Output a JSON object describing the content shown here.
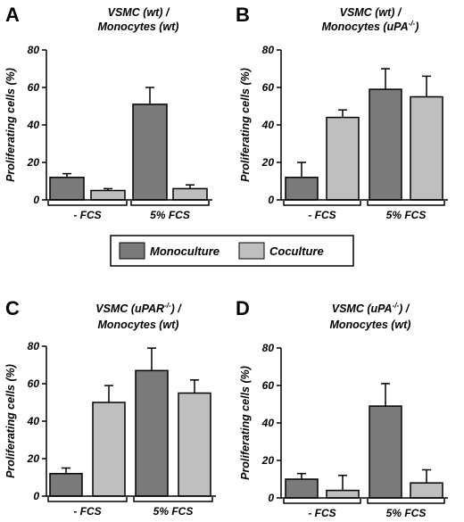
{
  "legend": {
    "entries": [
      {
        "label": "Monoculture",
        "color": "#7a7a7a"
      },
      {
        "label": "Coculture",
        "color": "#bfbfbf"
      }
    ]
  },
  "chart_data": [
    {
      "panel": "A",
      "type": "bar",
      "title_line1": "VSMC (wt) /",
      "title_line2_pre": "Monocytes (wt)",
      "title_line2_sup": "",
      "title_line2_post": "",
      "ylabel": "Proliferating cells (%)",
      "ylim": [
        0,
        80
      ],
      "yticks": [
        "0",
        "20",
        "40",
        "60",
        "80"
      ],
      "groups": [
        "- FCS",
        "5% FCS"
      ],
      "series": [
        {
          "name": "Monoculture",
          "values": [
            12,
            51
          ],
          "errors": [
            2,
            9
          ]
        },
        {
          "name": "Coculture",
          "values": [
            5,
            6
          ],
          "errors": [
            1,
            2
          ]
        }
      ]
    },
    {
      "panel": "B",
      "type": "bar",
      "title_line1": "VSMC (wt) /",
      "title_line2_pre": "Monocytes (uPA",
      "title_line2_sup": "-/-",
      "title_line2_post": ")",
      "ylabel": "Proliferating cells (%)",
      "ylim": [
        0,
        80
      ],
      "yticks": [
        "0",
        "20",
        "40",
        "60",
        "80"
      ],
      "groups": [
        "- FCS",
        "5% FCS"
      ],
      "series": [
        {
          "name": "Monoculture",
          "values": [
            12,
            59
          ],
          "errors": [
            8,
            11
          ]
        },
        {
          "name": "Coculture",
          "values": [
            44,
            55
          ],
          "errors": [
            4,
            11
          ]
        }
      ]
    },
    {
      "panel": "C",
      "type": "bar",
      "title_line1_pre": "VSMC (uPAR",
      "title_line1_sup": "-/-",
      "title_line1_post": ") /",
      "title_line2_pre": "Monocytes (wt)",
      "title_line2_sup": "",
      "title_line2_post": "",
      "ylabel": "Proliferating cells (%)",
      "ylim": [
        0,
        80
      ],
      "yticks": [
        "0",
        "20",
        "40",
        "60",
        "80"
      ],
      "groups": [
        "- FCS",
        "5% FCS"
      ],
      "series": [
        {
          "name": "Monoculture",
          "values": [
            12,
            67
          ],
          "errors": [
            3,
            12
          ]
        },
        {
          "name": "Coculture",
          "values": [
            50,
            55
          ],
          "errors": [
            9,
            7
          ]
        }
      ]
    },
    {
      "panel": "D",
      "type": "bar",
      "title_line1_pre": "VSMC (uPA",
      "title_line1_sup": "-/-",
      "title_line1_post": ") /",
      "title_line2_pre": "Monocytes (wt)",
      "title_line2_sup": "",
      "title_line2_post": "",
      "ylabel": "Proliferating cells (%)",
      "ylim": [
        0,
        80
      ],
      "yticks": [
        "0",
        "20",
        "40",
        "60",
        "80"
      ],
      "groups": [
        "- FCS",
        "5% FCS"
      ],
      "series": [
        {
          "name": "Monoculture",
          "values": [
            10,
            49
          ],
          "errors": [
            3,
            12
          ]
        },
        {
          "name": "Coculture",
          "values": [
            4,
            8
          ],
          "errors": [
            8,
            7
          ]
        }
      ]
    }
  ]
}
